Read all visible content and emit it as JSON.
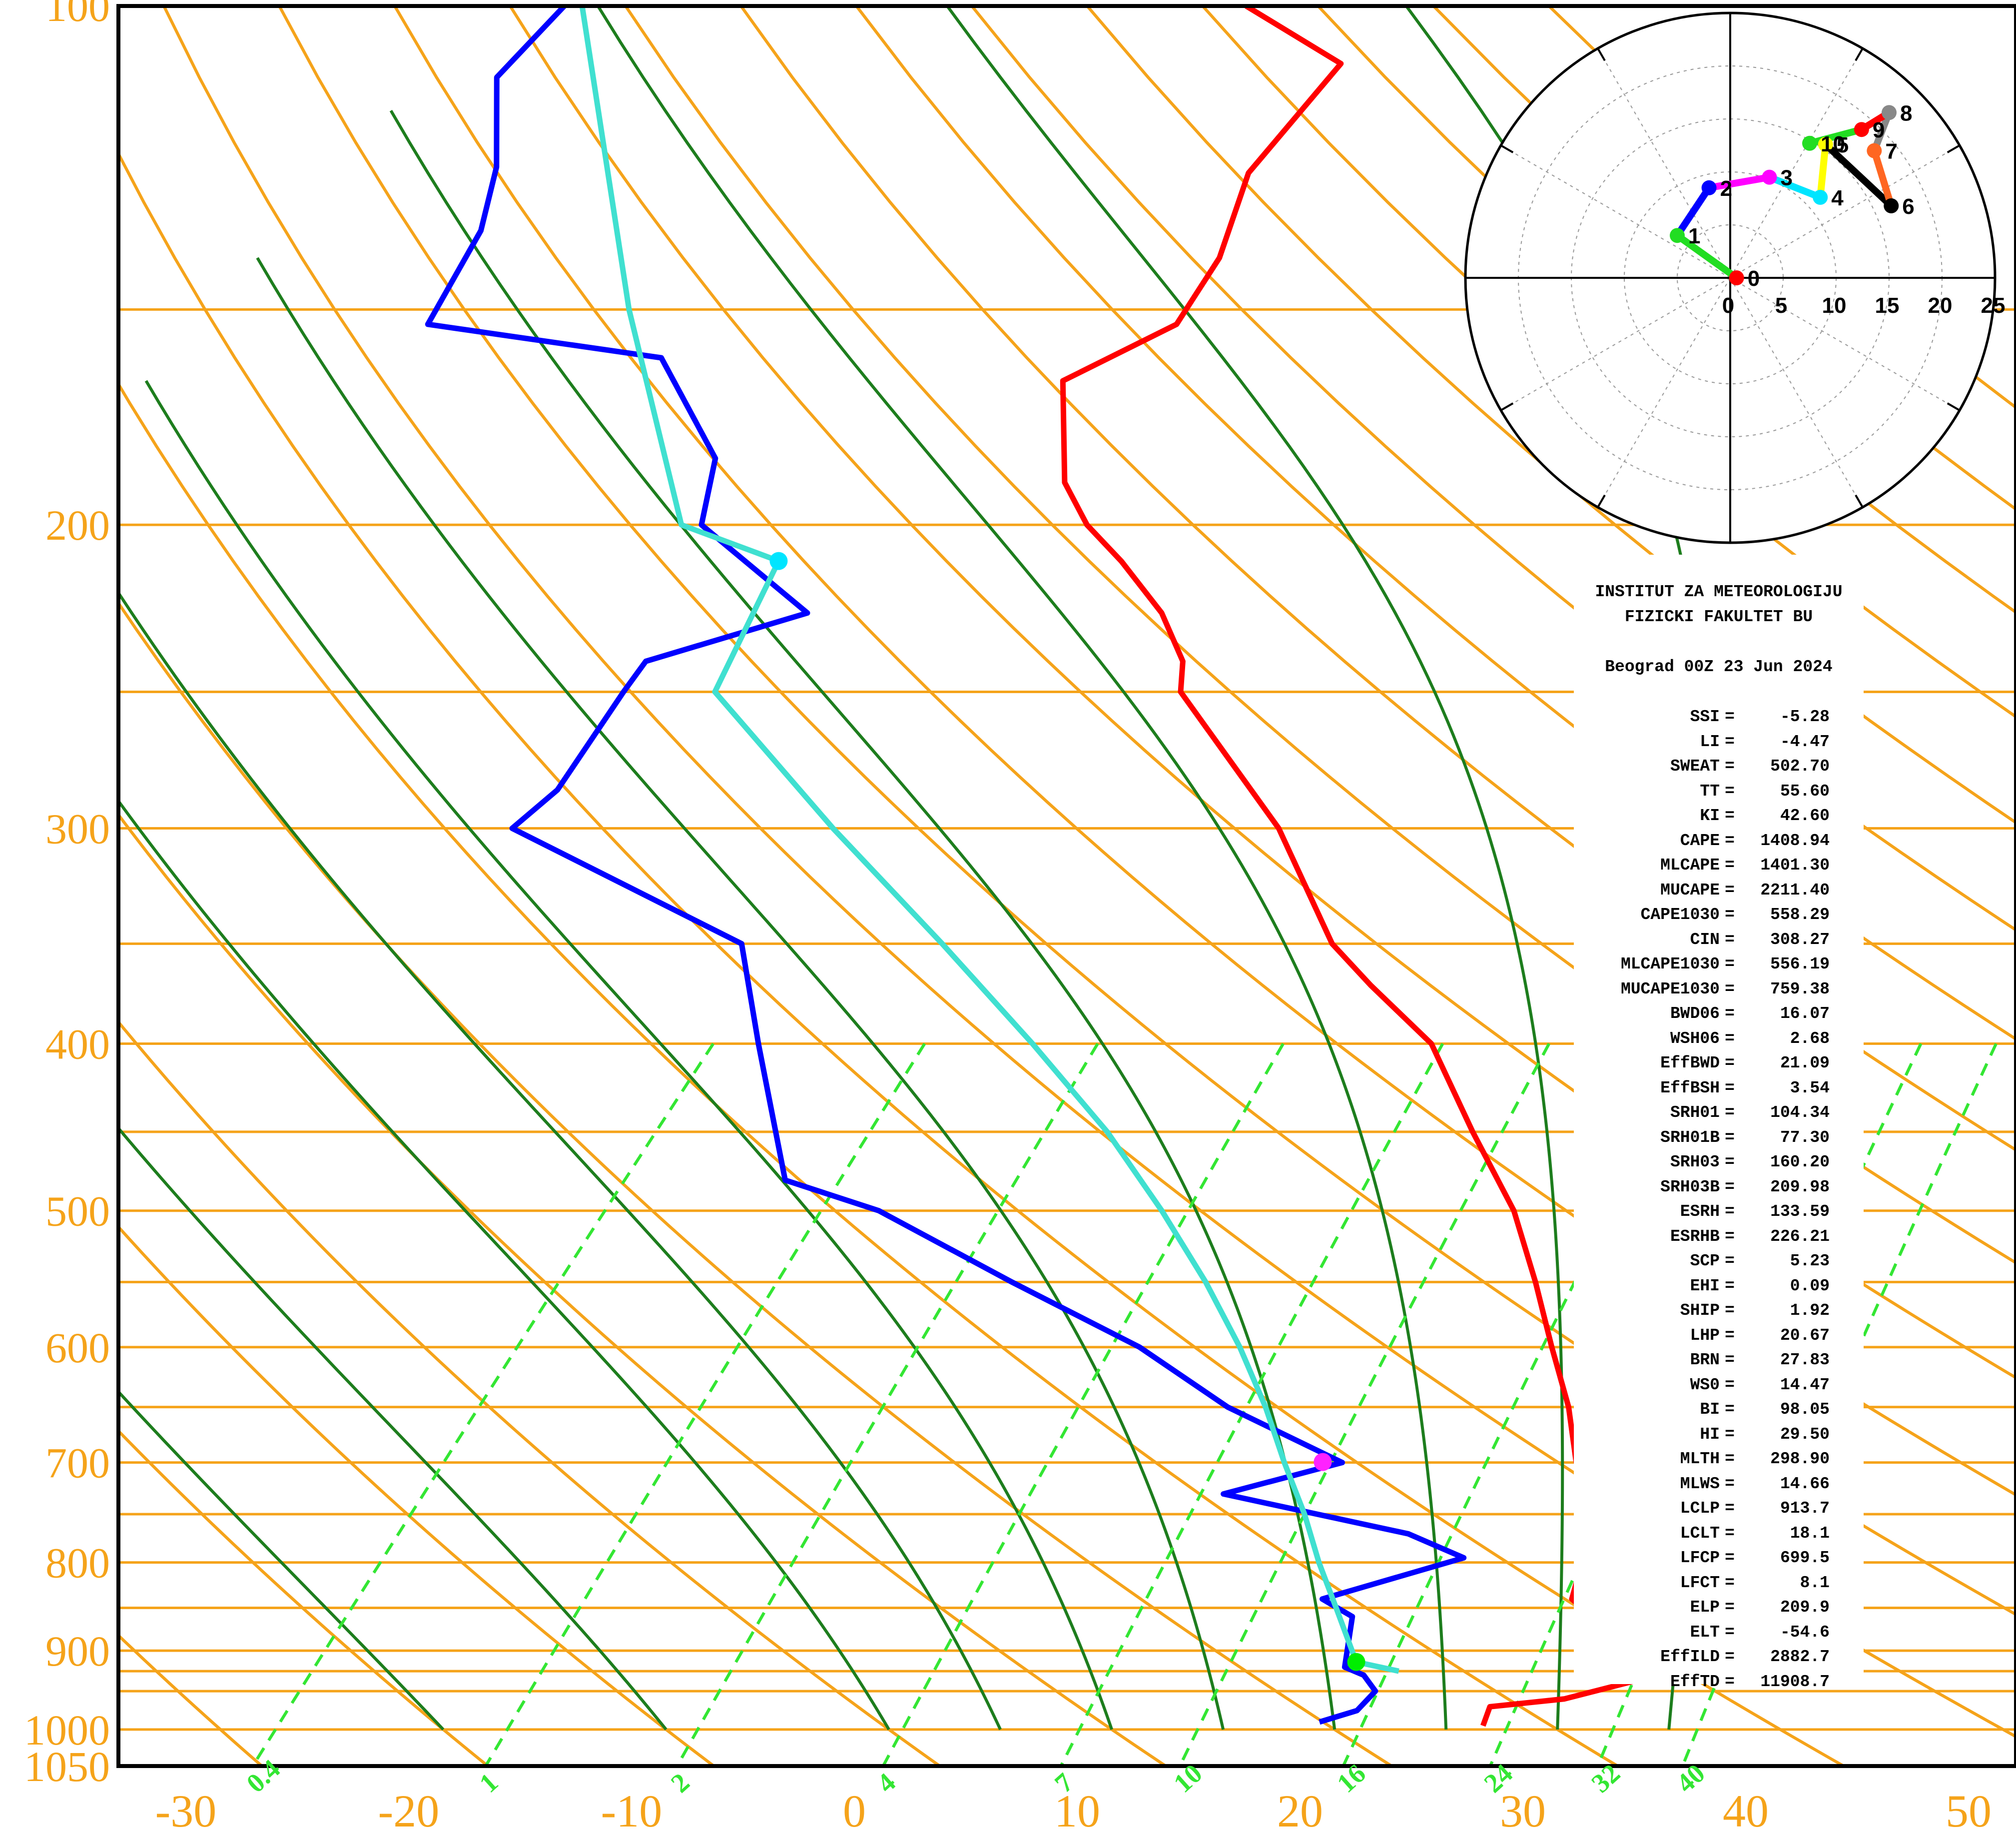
{
  "chart_data": {
    "type": "skew-t log-p sounding with hodograph",
    "pressure_axis": {
      "ticks": [
        100,
        200,
        300,
        400,
        500,
        600,
        700,
        800,
        900,
        1000,
        1050
      ],
      "range": [
        100,
        1050
      ],
      "scale": "log"
    },
    "temperature_axis": {
      "ticks": [
        -30,
        -20,
        -10,
        0,
        10,
        20,
        30,
        40,
        50
      ],
      "range": [
        -35,
        50
      ],
      "skewed": true
    },
    "isobar_levels": [
      100,
      150,
      200,
      250,
      300,
      350,
      400,
      450,
      500,
      550,
      600,
      650,
      700,
      750,
      800,
      850,
      900,
      925,
      950,
      1000
    ],
    "dry_adiabats_theta_c": [
      -40,
      -30,
      -20,
      -10,
      0,
      10,
      20,
      30,
      40,
      50,
      60,
      70,
      80,
      90,
      100,
      110,
      120,
      130,
      140,
      150,
      160,
      170
    ],
    "moist_adiabats_start_c": [
      -20,
      -10,
      0,
      5,
      10,
      15,
      20,
      25,
      30,
      35
    ],
    "mixing_ratio_lines": [
      {
        "w": 0.4,
        "label": "0.4"
      },
      {
        "w": 1,
        "label": "1"
      },
      {
        "w": 2,
        "label": "2"
      },
      {
        "w": 4,
        "label": "4"
      },
      {
        "w": 7,
        "label": "7"
      },
      {
        "w": 10,
        "label": "10"
      },
      {
        "w": 16,
        "label": "16"
      },
      {
        "w": 24,
        "label": "24"
      },
      {
        "w": 32,
        "label": "32"
      },
      {
        "w": 40,
        "label": "40"
      }
    ],
    "series": [
      {
        "kind": "temperature",
        "color": "#ff0000",
        "points": [
          [
            995,
            26.5
          ],
          [
            970,
            26.0
          ],
          [
            960,
            29.0
          ],
          [
            925,
            32.7
          ],
          [
            870,
            27.6
          ],
          [
            840,
            25.1
          ],
          [
            800,
            24.0
          ],
          [
            770,
            24.2
          ],
          [
            740,
            23.5
          ],
          [
            700,
            19.5
          ],
          [
            650,
            16.8
          ],
          [
            600,
            13.5
          ],
          [
            550,
            10.0
          ],
          [
            500,
            6.0
          ],
          [
            450,
            0.8
          ],
          [
            400,
            -4.8
          ],
          [
            370,
            -10.0
          ],
          [
            350,
            -13.5
          ],
          [
            300,
            -20.8
          ],
          [
            250,
            -31.0
          ],
          [
            240,
            -32.2
          ],
          [
            225,
            -35.2
          ],
          [
            210,
            -39.2
          ],
          [
            200,
            -42.3
          ],
          [
            189,
            -45.1
          ],
          [
            165,
            -49.5
          ],
          [
            153,
            -46.8
          ],
          [
            140,
            -47.7
          ],
          [
            125,
            -50.0
          ],
          [
            108,
            -50.5
          ],
          [
            100,
            -57.2
          ]
        ]
      },
      {
        "kind": "dewpoint",
        "color": "#0000ff",
        "points": [
          [
            990,
            19.0
          ],
          [
            975,
            20.2
          ],
          [
            950,
            20.2
          ],
          [
            930,
            19.0
          ],
          [
            920,
            17.8
          ],
          [
            860,
            16.0
          ],
          [
            840,
            13.9
          ],
          [
            795,
            18.5
          ],
          [
            770,
            15.0
          ],
          [
            730,
            5.0
          ],
          [
            700,
            9.0
          ],
          [
            650,
            1.5
          ],
          [
            600,
            -5.0
          ],
          [
            550,
            -13.5
          ],
          [
            500,
            -22.5
          ],
          [
            480,
            -28.0
          ],
          [
            400,
            -35.0
          ],
          [
            350,
            -40.0
          ],
          [
            300,
            -55.2
          ],
          [
            285,
            -54.8
          ],
          [
            250,
            -56.0
          ],
          [
            240,
            -56.3
          ],
          [
            225,
            -51.1
          ],
          [
            200,
            -59.6
          ],
          [
            183,
            -61.8
          ],
          [
            160,
            -68.5
          ],
          [
            153,
            -80.4
          ],
          [
            135,
            -82.0
          ],
          [
            124,
            -84.0
          ],
          [
            110,
            -87.8
          ],
          [
            100,
            -87.8
          ]
        ]
      },
      {
        "kind": "parcel",
        "color": "#40e0d0",
        "points": [
          [
            925,
            20.4
          ],
          [
            913.7,
            18.1
          ],
          [
            850,
            14.9
          ],
          [
            800,
            12.2
          ],
          [
            750,
            9.5
          ],
          [
            700,
            6.4
          ],
          [
            650,
            3.2
          ],
          [
            600,
            -0.5
          ],
          [
            550,
            -4.8
          ],
          [
            500,
            -9.8
          ],
          [
            450,
            -15.6
          ],
          [
            400,
            -22.7
          ],
          [
            350,
            -31.0
          ],
          [
            300,
            -40.8
          ],
          [
            250,
            -51.9
          ],
          [
            209.9,
            -54.6
          ],
          [
            200,
            -60.5
          ],
          [
            150,
            -72.0
          ],
          [
            100,
            -87.0
          ]
        ]
      }
    ],
    "markers": [
      {
        "name": "lcl",
        "pressure": 913.7,
        "temperature": 18.1,
        "color": "#00ee00"
      },
      {
        "name": "lfc",
        "pressure": 699.5,
        "temperature": 8.1,
        "color": "#ff22ff"
      },
      {
        "name": "el",
        "pressure": 209.9,
        "temperature": -54.6,
        "color": "#00e5ff"
      }
    ],
    "hodograph": {
      "rings": [
        5,
        10,
        15,
        20,
        25
      ],
      "axis_ticks": [
        "0",
        "5",
        "10",
        "15",
        "20",
        "25"
      ],
      "segments": [
        {
          "label": "0",
          "u": 0.6,
          "v": 0.0,
          "color": "#ff0000"
        },
        {
          "label": "1",
          "u": -5.0,
          "v": 4.0,
          "color": "#22dd22"
        },
        {
          "label": "2",
          "u": -2.0,
          "v": 8.5,
          "color": "#0000ff"
        },
        {
          "label": "3",
          "u": 3.7,
          "v": 9.5,
          "color": "#ff00ff"
        },
        {
          "label": "4",
          "u": 8.5,
          "v": 7.6,
          "color": "#00e5ff"
        },
        {
          "label": "5",
          "u": 9.0,
          "v": 12.6,
          "color": "#ffff00"
        },
        {
          "label": "6",
          "u": 15.2,
          "v": 6.8,
          "color": "#000000"
        },
        {
          "label": "7",
          "u": 13.6,
          "v": 12.0,
          "color": "#ff6622"
        },
        {
          "label": "8",
          "u": 15.0,
          "v": 15.6,
          "color": "#888888"
        },
        {
          "label": "9",
          "u": 12.4,
          "v": 14.0,
          "color": "#ff0000"
        },
        {
          "label": "10",
          "u": 7.5,
          "v": 12.7,
          "color": "#22dd22"
        }
      ]
    }
  },
  "info": {
    "header1": "INSTITUT ZA METEOROLOGIJU",
    "header2": "FIZICKI FAKULTET BU",
    "station": "Beograd 00Z 23 Jun 2024",
    "rows": [
      {
        "k": "SSI",
        "v": "-5.28"
      },
      {
        "k": "LI",
        "v": "-4.47"
      },
      {
        "k": "SWEAT",
        "v": "502.70"
      },
      {
        "k": "TT",
        "v": "55.60"
      },
      {
        "k": "KI",
        "v": "42.60"
      },
      {
        "k": "CAPE",
        "v": "1408.94"
      },
      {
        "k": "MLCAPE",
        "v": "1401.30"
      },
      {
        "k": "MUCAPE",
        "v": "2211.40"
      },
      {
        "k": "CAPE1030",
        "v": "558.29"
      },
      {
        "k": "CIN",
        "v": "308.27"
      },
      {
        "k": "MLCAPE1030",
        "v": "556.19"
      },
      {
        "k": "MUCAPE1030",
        "v": "759.38"
      },
      {
        "k": "BWD06",
        "v": "16.07"
      },
      {
        "k": "WSH06",
        "v": "2.68"
      },
      {
        "k": "EffBWD",
        "v": "21.09"
      },
      {
        "k": "EffBSH",
        "v": "3.54"
      },
      {
        "k": "SRH01",
        "v": "104.34"
      },
      {
        "k": "SRH01B",
        "v": "77.30"
      },
      {
        "k": "SRH03",
        "v": "160.20"
      },
      {
        "k": "SRH03B",
        "v": "209.98"
      },
      {
        "k": "ESRH",
        "v": "133.59"
      },
      {
        "k": "ESRHB",
        "v": "226.21"
      },
      {
        "k": "SCP",
        "v": "5.23"
      },
      {
        "k": "EHI",
        "v": "0.09"
      },
      {
        "k": "SHIP",
        "v": "1.92"
      },
      {
        "k": "LHP",
        "v": "20.67"
      },
      {
        "k": "BRN",
        "v": "27.83"
      },
      {
        "k": "WS0",
        "v": "14.47"
      },
      {
        "k": "BI",
        "v": "98.05"
      },
      {
        "k": "HI",
        "v": "29.50"
      },
      {
        "k": "MLTH",
        "v": "298.90"
      },
      {
        "k": "MLWS",
        "v": "14.66"
      },
      {
        "k": "LCLP",
        "v": "913.7"
      },
      {
        "k": "LCLT",
        "v": "18.1"
      },
      {
        "k": "LFCP",
        "v": "699.5"
      },
      {
        "k": "LFCT",
        "v": "8.1"
      },
      {
        "k": "ELP",
        "v": "209.9"
      },
      {
        "k": "ELT",
        "v": "-54.6"
      },
      {
        "k": "EffILD",
        "v": "2882.7"
      },
      {
        "k": "EffTD",
        "v": "11908.7"
      }
    ]
  }
}
